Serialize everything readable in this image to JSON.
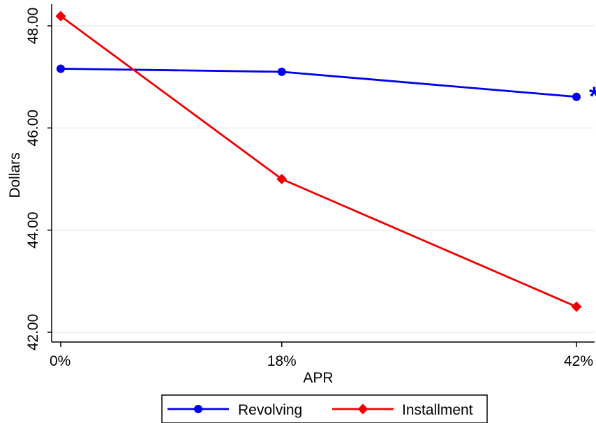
{
  "chart_data": {
    "type": "line",
    "categories": [
      "0%",
      "18%",
      "42%"
    ],
    "x": [
      0,
      18,
      42
    ],
    "xlabel": "APR",
    "ylabel": "Dollars",
    "ylim": [
      42.0,
      48.2
    ],
    "yticks": [
      "42.00",
      "44.00",
      "46.00",
      "48.00"
    ],
    "ytick_values": [
      42,
      44,
      46,
      48
    ],
    "grid": "horizontal",
    "legend_position": "bottom",
    "series": [
      {
        "name": "Revolving",
        "values": [
          47.16,
          47.1,
          46.61
        ],
        "color": "#0000ee",
        "marker": "circle"
      },
      {
        "name": "Installment",
        "values": [
          48.19,
          45.0,
          42.5
        ],
        "color": "#ee0000",
        "marker": "diamond"
      }
    ],
    "annotation": {
      "text": "*",
      "series": "Revolving",
      "point_index": 2,
      "color": "#0000ee"
    }
  }
}
